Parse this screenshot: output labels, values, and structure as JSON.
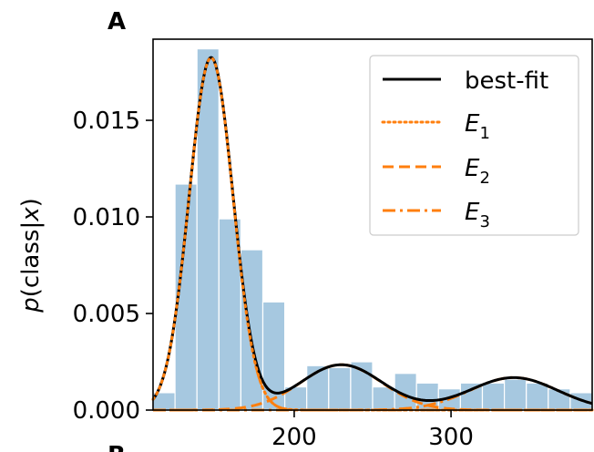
{
  "panel_label": "A",
  "next_panel_label": "B",
  "chart_data": {
    "type": "bar",
    "ylabel": "p(class|x)",
    "ylabel_parts": {
      "pre": "p",
      "open": "(class|",
      "var": "x",
      "close": ")"
    },
    "xlim": [
      110,
      390
    ],
    "ylim": [
      0,
      0.0192
    ],
    "x_ticks": [
      200,
      300
    ],
    "x_tick_labels": [
      "200",
      "300"
    ],
    "y_ticks": [
      0,
      0.005,
      0.01,
      0.015
    ],
    "y_tick_labels": [
      "0.000",
      "0.005",
      "0.010",
      "0.015"
    ],
    "legend_position": "upper-right",
    "colors": {
      "histogram": "#a6c8e0",
      "best_fit": "#000000",
      "components": "#ff7f0e"
    },
    "histogram": {
      "bin_edges": [
        110,
        124,
        138,
        152,
        166,
        180,
        194,
        208,
        222,
        236,
        250,
        264,
        278,
        292,
        306,
        320,
        334,
        348,
        362,
        376,
        390
      ],
      "values": [
        0.0009,
        0.0117,
        0.0187,
        0.0099,
        0.0083,
        0.0056,
        0.0012,
        0.0023,
        0.0022,
        0.0025,
        0.0012,
        0.0019,
        0.0014,
        0.0011,
        0.0014,
        0.0014,
        0.0016,
        0.0014,
        0.0011,
        0.0009
      ]
    },
    "series": [
      {
        "name": "best-fit",
        "style": "solid",
        "line_type": "best-fit"
      },
      {
        "name": "E",
        "subscript": "1",
        "style": "dotted",
        "line_type": "component",
        "mean": 147,
        "sd": 14,
        "weight": 0.64
      },
      {
        "name": "E",
        "subscript": "2",
        "style": "dashed",
        "line_type": "component",
        "mean": 230,
        "sd": 26,
        "weight": 0.153
      },
      {
        "name": "E",
        "subscript": "3",
        "style": "dashdot",
        "line_type": "component",
        "mean": 340,
        "sd": 28,
        "weight": 0.118
      }
    ]
  }
}
